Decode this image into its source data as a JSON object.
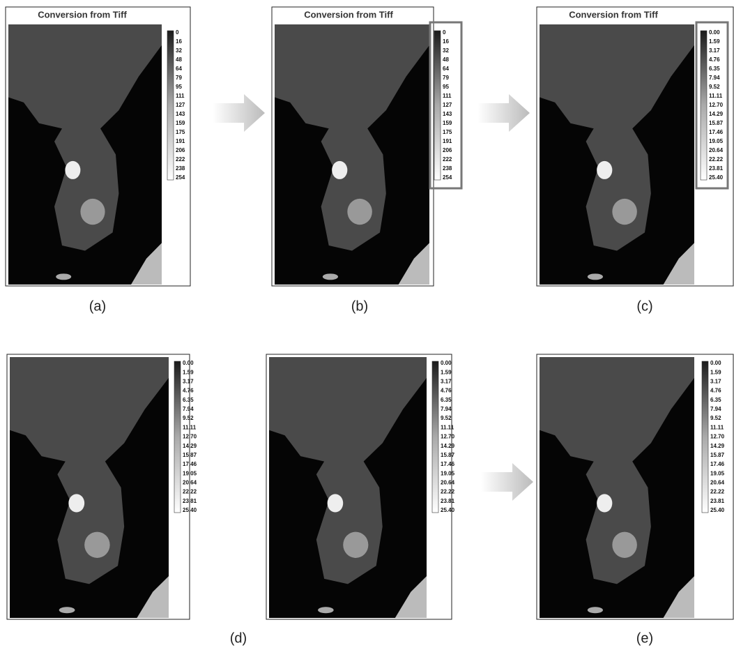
{
  "panels": [
    {
      "title": "Conversion from Tiff",
      "legend": [
        "0",
        "16",
        "32",
        "48",
        "64",
        "79",
        "95",
        "111",
        "127",
        "143",
        "159",
        "175",
        "191",
        "206",
        "222",
        "238",
        "254"
      ]
    },
    {
      "title": "Conversion from Tiff",
      "legend": [
        "0",
        "16",
        "32",
        "48",
        "64",
        "79",
        "95",
        "111",
        "127",
        "143",
        "159",
        "175",
        "191",
        "206",
        "222",
        "238",
        "254"
      ]
    },
    {
      "title": "Conversion from Tiff",
      "legend": [
        "0.00",
        "1.59",
        "3.17",
        "4.76",
        "6.35",
        "7.94",
        "9.52",
        "11.11",
        "12.70",
        "14.29",
        "15.87",
        "17.46",
        "19.05",
        "20.64",
        "22.22",
        "23.81",
        "25.40"
      ]
    },
    {
      "legend": [
        "0.00",
        "1.59",
        "3.17",
        "4.76",
        "6.35",
        "7.94",
        "9.52",
        "11.11",
        "12.70",
        "14.29",
        "15.87",
        "17.46",
        "19.05",
        "20.64",
        "22.22",
        "23.81",
        "25.40"
      ]
    },
    {
      "legend": [
        "0.00",
        "1.59",
        "3.17",
        "4.76",
        "6.35",
        "7.94",
        "9.52",
        "11.11",
        "12.70",
        "14.29",
        "15.87",
        "17.46",
        "19.05",
        "20.64",
        "22.22",
        "23.81",
        "25.40"
      ]
    },
    {
      "legend": [
        "0.00",
        "1.59",
        "3.17",
        "4.76",
        "6.35",
        "7.94",
        "9.52",
        "11.11",
        "12.70",
        "14.29",
        "15.87",
        "17.46",
        "19.05",
        "20.64",
        "22.22",
        "23.81",
        "25.40"
      ]
    }
  ],
  "captions": [
    "(a)",
    "(b)",
    "(c)",
    "(d)",
    "(e)"
  ]
}
